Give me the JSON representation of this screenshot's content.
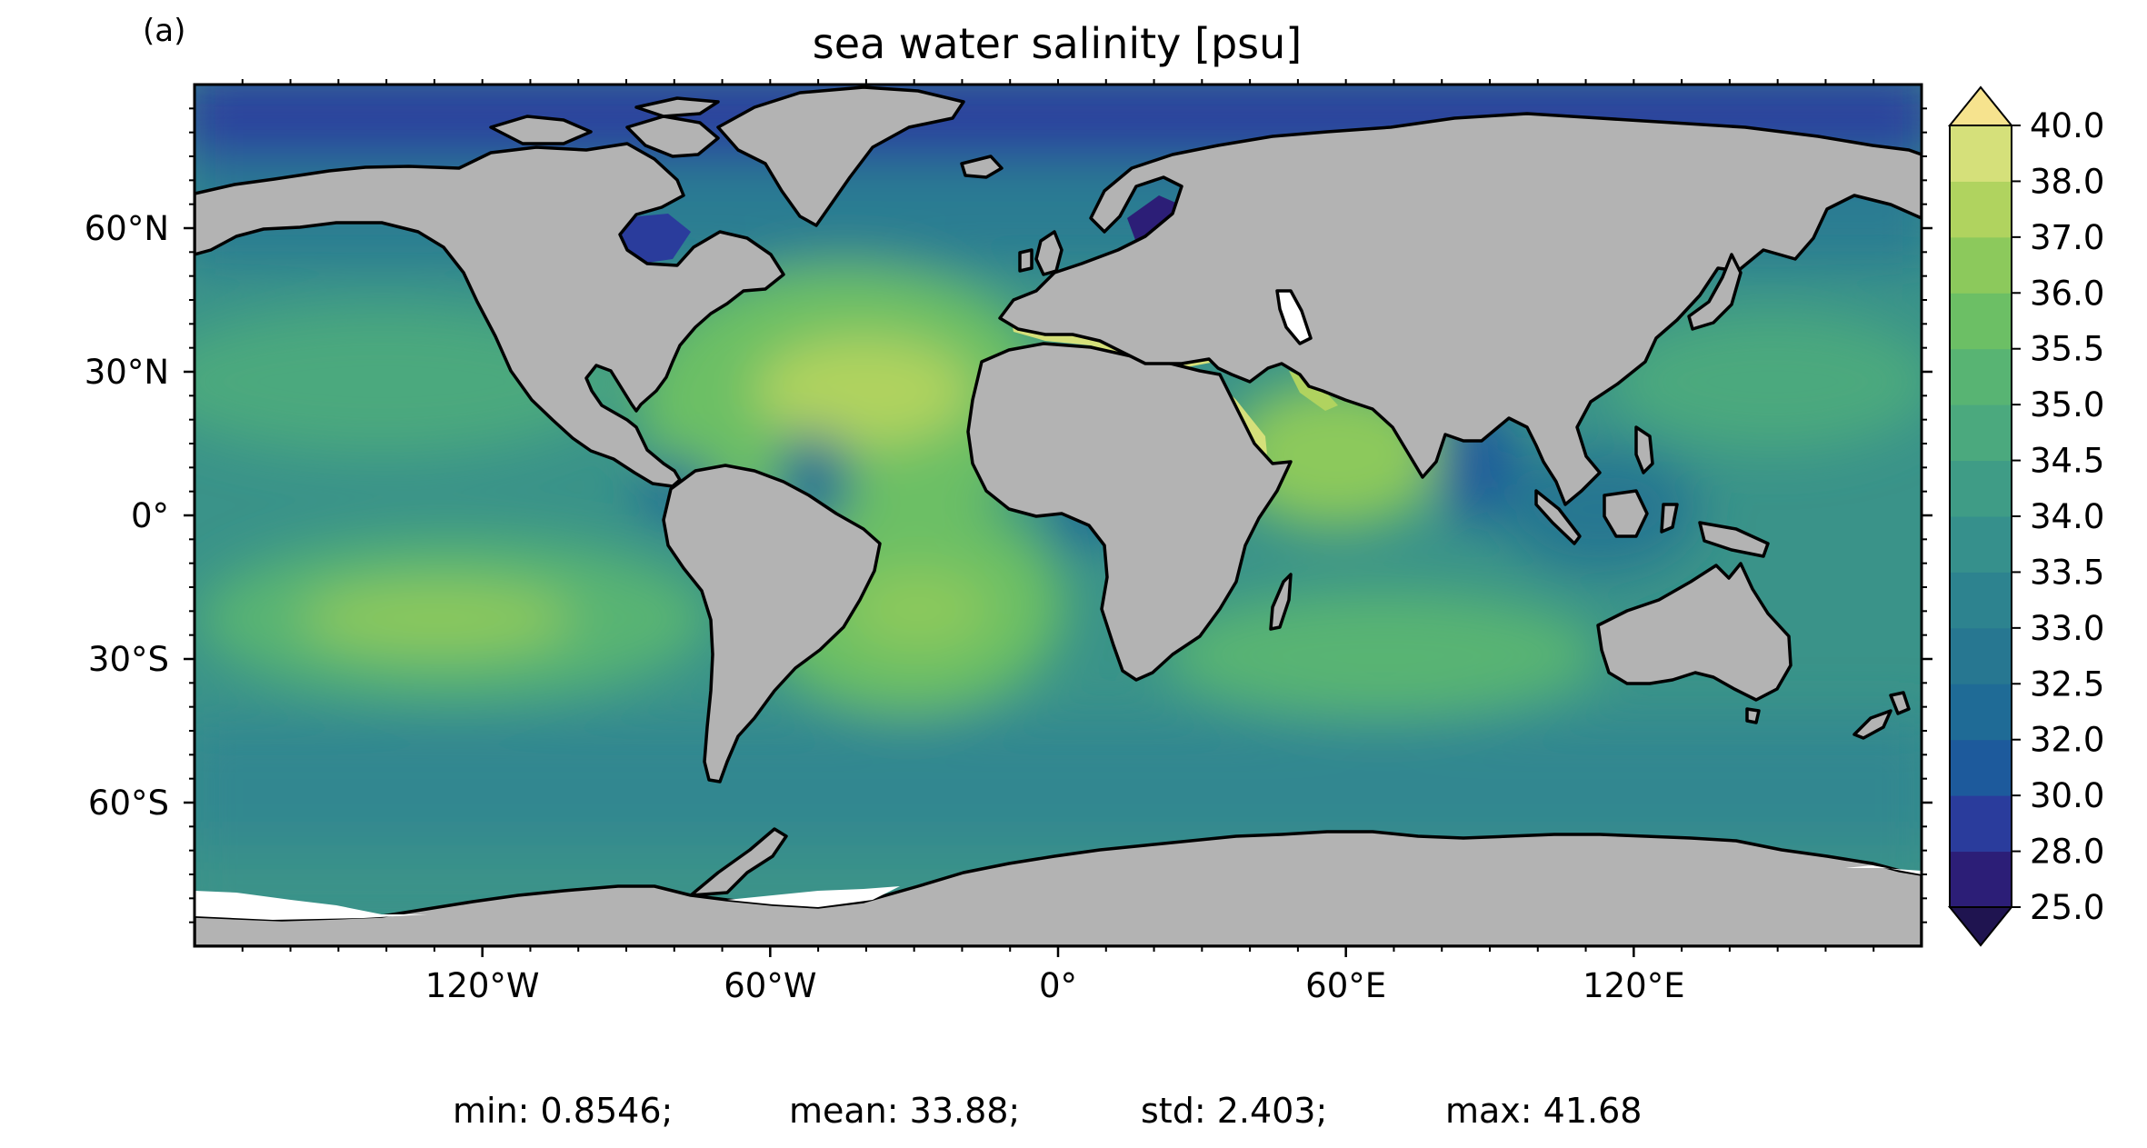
{
  "panel_label": "(a)",
  "title": "sea water salinity [psu]",
  "colors": {
    "land": "#b3b3b3",
    "ice": "#ffffff",
    "coast": "#000000"
  },
  "chart_data": {
    "type": "heatmap",
    "title": "sea water salinity [psu]",
    "projection": "equirectangular",
    "lon_range": [
      -180,
      180
    ],
    "lat_range": [
      -90,
      90
    ],
    "xticks": [
      {
        "lon": -120,
        "label": "120°W"
      },
      {
        "lon": -60,
        "label": "60°W"
      },
      {
        "lon": 0,
        "label": "0°"
      },
      {
        "lon": 60,
        "label": "60°E"
      },
      {
        "lon": 120,
        "label": "120°E"
      }
    ],
    "yticks": [
      {
        "lat": 60,
        "label": "60°N"
      },
      {
        "lat": 30,
        "label": "30°N"
      },
      {
        "lat": 0,
        "label": "0°"
      },
      {
        "lat": -30,
        "label": "30°S"
      },
      {
        "lat": -60,
        "label": "60°S"
      }
    ],
    "colorbar": {
      "levels": [
        25.0,
        28.0,
        30.0,
        32.0,
        32.5,
        33.0,
        33.5,
        34.0,
        34.5,
        35.0,
        35.5,
        36.0,
        37.0,
        38.0,
        40.0
      ],
      "labels": [
        "25.0",
        "28.0",
        "30.0",
        "32.0",
        "32.5",
        "33.0",
        "33.5",
        "34.0",
        "34.5",
        "35.0",
        "35.5",
        "36.0",
        "37.0",
        "38.0",
        "40.0"
      ],
      "colors": [
        "#2c1e77",
        "#2a3c9c",
        "#1d5a9c",
        "#1f6b96",
        "#277791",
        "#2d838f",
        "#36908c",
        "#3f9c86",
        "#4ba97e",
        "#58b473",
        "#6cbf65",
        "#8cc95c",
        "#b0d35f",
        "#d5e07a"
      ],
      "under_color": "#1f1450",
      "over_color": "#f6e38e",
      "extend": "both"
    },
    "stats": [
      {
        "name": "min",
        "value": "0.8546",
        "text": "min: 0.8546;"
      },
      {
        "name": "mean",
        "value": "33.88",
        "text": "mean: 33.88;"
      },
      {
        "name": "std",
        "value": "2.403",
        "text": "std: 2.403;"
      },
      {
        "name": "max",
        "value": "41.68",
        "text": "max: 41.68"
      }
    ]
  }
}
